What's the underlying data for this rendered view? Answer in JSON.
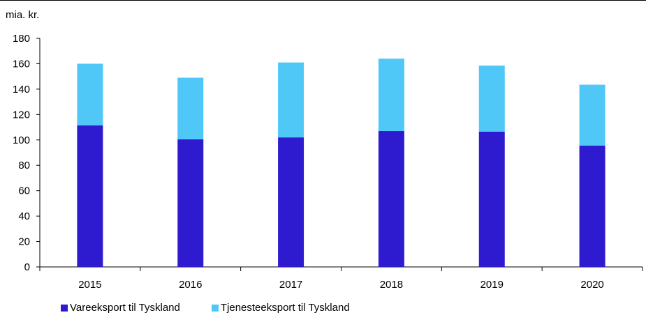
{
  "chart_data": {
    "type": "bar",
    "stacked": true,
    "unit_label": "mia. kr.",
    "categories": [
      "2015",
      "2016",
      "2017",
      "2018",
      "2019",
      "2020"
    ],
    "series": [
      {
        "name": "Vareeksport til Tyskland",
        "color": "#2E1BD0",
        "values": [
          111.5,
          100.5,
          102,
          107,
          106.5,
          95.5
        ]
      },
      {
        "name": "Tjenesteeksport til Tyskland",
        "color": "#4FC8F8",
        "values": [
          48.5,
          48.5,
          59,
          57,
          52,
          48
        ]
      }
    ],
    "ylim": [
      0,
      180
    ],
    "yticks": [
      "0",
      "20",
      "40",
      "60",
      "80",
      "100",
      "120",
      "140",
      "160",
      "180"
    ],
    "grid": false,
    "legend_position": "bottom-left"
  }
}
